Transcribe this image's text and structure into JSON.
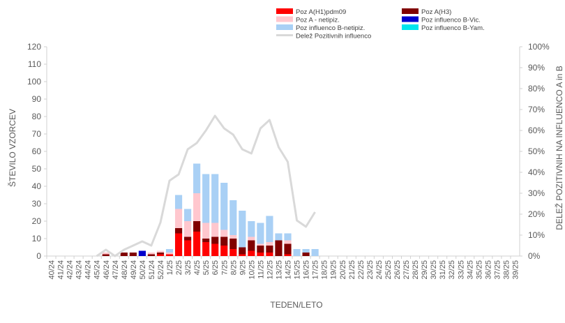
{
  "chart_data": {
    "type": "bar",
    "subtype": "stacked bar with line on secondary axis",
    "xlabel": "TEDEN/LETO",
    "ylabel": "ŠTEVILO VZORCEV",
    "y2label": "DELEŽ POZITIVNIH  NA INFLUENCO  A in B",
    "ylim": [
      0,
      120
    ],
    "y_ticks": [
      0,
      10,
      20,
      30,
      40,
      50,
      60,
      70,
      80,
      90,
      100,
      110,
      120
    ],
    "y2lim": [
      0,
      100
    ],
    "y2_ticks": [
      "0%",
      "10%",
      "20%",
      "30%",
      "40%",
      "50%",
      "60%",
      "70%",
      "80%",
      "90%",
      "100%"
    ],
    "grid": false,
    "legend_position": "top-right",
    "categories": [
      "40/24",
      "41/24",
      "42/24",
      "43/24",
      "44/24",
      "45/24",
      "46/24",
      "47/24",
      "48/24",
      "49/24",
      "50/24",
      "51/24",
      "52/24",
      "1/25",
      "2/25",
      "3/25",
      "4/25",
      "5/25",
      "6/25",
      "7/25",
      "8/25",
      "9/25",
      "10/25",
      "11/25",
      "12/25",
      "13/25",
      "14/25",
      "15/25",
      "16/25",
      "17/25",
      "18/25",
      "19/25",
      "20/25",
      "21/25",
      "22/25",
      "23/25",
      "24/25",
      "25/25",
      "26/25",
      "27/25",
      "28/25",
      "29/25",
      "30/25",
      "31/25",
      "32/25",
      "33/25",
      "34/25",
      "35/25",
      "36/25",
      "37/25",
      "38/25",
      "39/25"
    ],
    "series": [
      {
        "name": "Poz A(H1)pdm09",
        "kind": "bar",
        "color": "#ff0000",
        "values": [
          0,
          0,
          0,
          0,
          0,
          0,
          0,
          0,
          0,
          0,
          0,
          0,
          1,
          1,
          13,
          9,
          14,
          8,
          7,
          6,
          4,
          1,
          3,
          2,
          2,
          0,
          1,
          0,
          0,
          0,
          0,
          0,
          0,
          0,
          0,
          0,
          0,
          0,
          0,
          0,
          0,
          0,
          0,
          0,
          0,
          0,
          0,
          0,
          0,
          0,
          0,
          0
        ]
      },
      {
        "name": "Poz A(H3)",
        "kind": "bar",
        "color": "#800000",
        "values": [
          0,
          0,
          0,
          0,
          0,
          0,
          1,
          0,
          2,
          2,
          0,
          1,
          1,
          0,
          3,
          2,
          6,
          2,
          4,
          5,
          6,
          4,
          6,
          4,
          4,
          9,
          6,
          0,
          2,
          0,
          0,
          0,
          0,
          0,
          0,
          0,
          0,
          0,
          0,
          0,
          0,
          0,
          0,
          0,
          0,
          0,
          0,
          0,
          0,
          0,
          0,
          0
        ]
      },
      {
        "name": "Poz A - netipiz.",
        "kind": "bar",
        "color": "#ffc7ce",
        "values": [
          0,
          0,
          0,
          0,
          0,
          0,
          1,
          0,
          0,
          0,
          0,
          1,
          1,
          1,
          11,
          9,
          16,
          9,
          8,
          4,
          2,
          0,
          2,
          1,
          2,
          0,
          2,
          0,
          0,
          0,
          0,
          0,
          0,
          0,
          0,
          0,
          0,
          0,
          0,
          0,
          0,
          0,
          0,
          0,
          0,
          0,
          0,
          0,
          0,
          0,
          0,
          0
        ]
      },
      {
        "name": "Poz  influenco B-Vic.",
        "kind": "bar",
        "color": "#0000cc",
        "values": [
          0,
          0,
          0,
          0,
          0,
          0,
          0,
          0,
          0,
          0,
          3,
          0,
          0,
          0,
          0,
          0,
          0,
          0,
          0,
          0,
          0,
          0,
          0,
          0,
          0,
          0,
          0,
          0,
          0,
          0,
          0,
          0,
          0,
          0,
          0,
          0,
          0,
          0,
          0,
          0,
          0,
          0,
          0,
          0,
          0,
          0,
          0,
          0,
          0,
          0,
          0,
          0
        ]
      },
      {
        "name": "Poz  influenco B-netipiz.",
        "kind": "bar",
        "color": "#a9d0f5",
        "values": [
          0,
          0,
          0,
          0,
          0,
          0,
          0,
          0,
          0,
          0,
          0,
          0,
          0,
          2,
          8,
          7,
          17,
          28,
          28,
          27,
          20,
          21,
          9,
          12,
          15,
          4,
          4,
          4,
          2,
          4,
          0,
          0,
          0,
          0,
          0,
          0,
          0,
          0,
          0,
          0,
          0,
          0,
          0,
          0,
          0,
          0,
          0,
          0,
          0,
          0,
          0,
          0
        ]
      },
      {
        "name": "Poz  influenco B-Yam.",
        "kind": "bar",
        "color": "#00e5ee",
        "values": [
          0,
          0,
          0,
          0,
          0,
          0,
          0,
          0,
          0,
          0,
          0,
          0,
          0,
          0,
          0,
          0,
          0,
          0,
          0,
          0,
          0,
          0,
          0,
          0,
          0,
          0,
          0,
          0,
          0,
          0,
          0,
          0,
          0,
          0,
          0,
          0,
          0,
          0,
          0,
          0,
          0,
          0,
          0,
          0,
          0,
          0,
          0,
          0,
          0,
          0,
          0,
          0
        ]
      },
      {
        "name": "Delež Pozitivnih  influenco",
        "kind": "line",
        "axis": "secondary",
        "unit": "%",
        "color": "#d9d9d9",
        "values": [
          null,
          null,
          null,
          null,
          null,
          0,
          3,
          0,
          3,
          5,
          7,
          5,
          16,
          36,
          39,
          51,
          54,
          60,
          67,
          61,
          58,
          51,
          49,
          61,
          65,
          52,
          45,
          17,
          14,
          21,
          null,
          null,
          null,
          null,
          null,
          null,
          null,
          null,
          null,
          null,
          null,
          null,
          null,
          null,
          null,
          null,
          null,
          null,
          null,
          null,
          null,
          null
        ]
      }
    ]
  }
}
